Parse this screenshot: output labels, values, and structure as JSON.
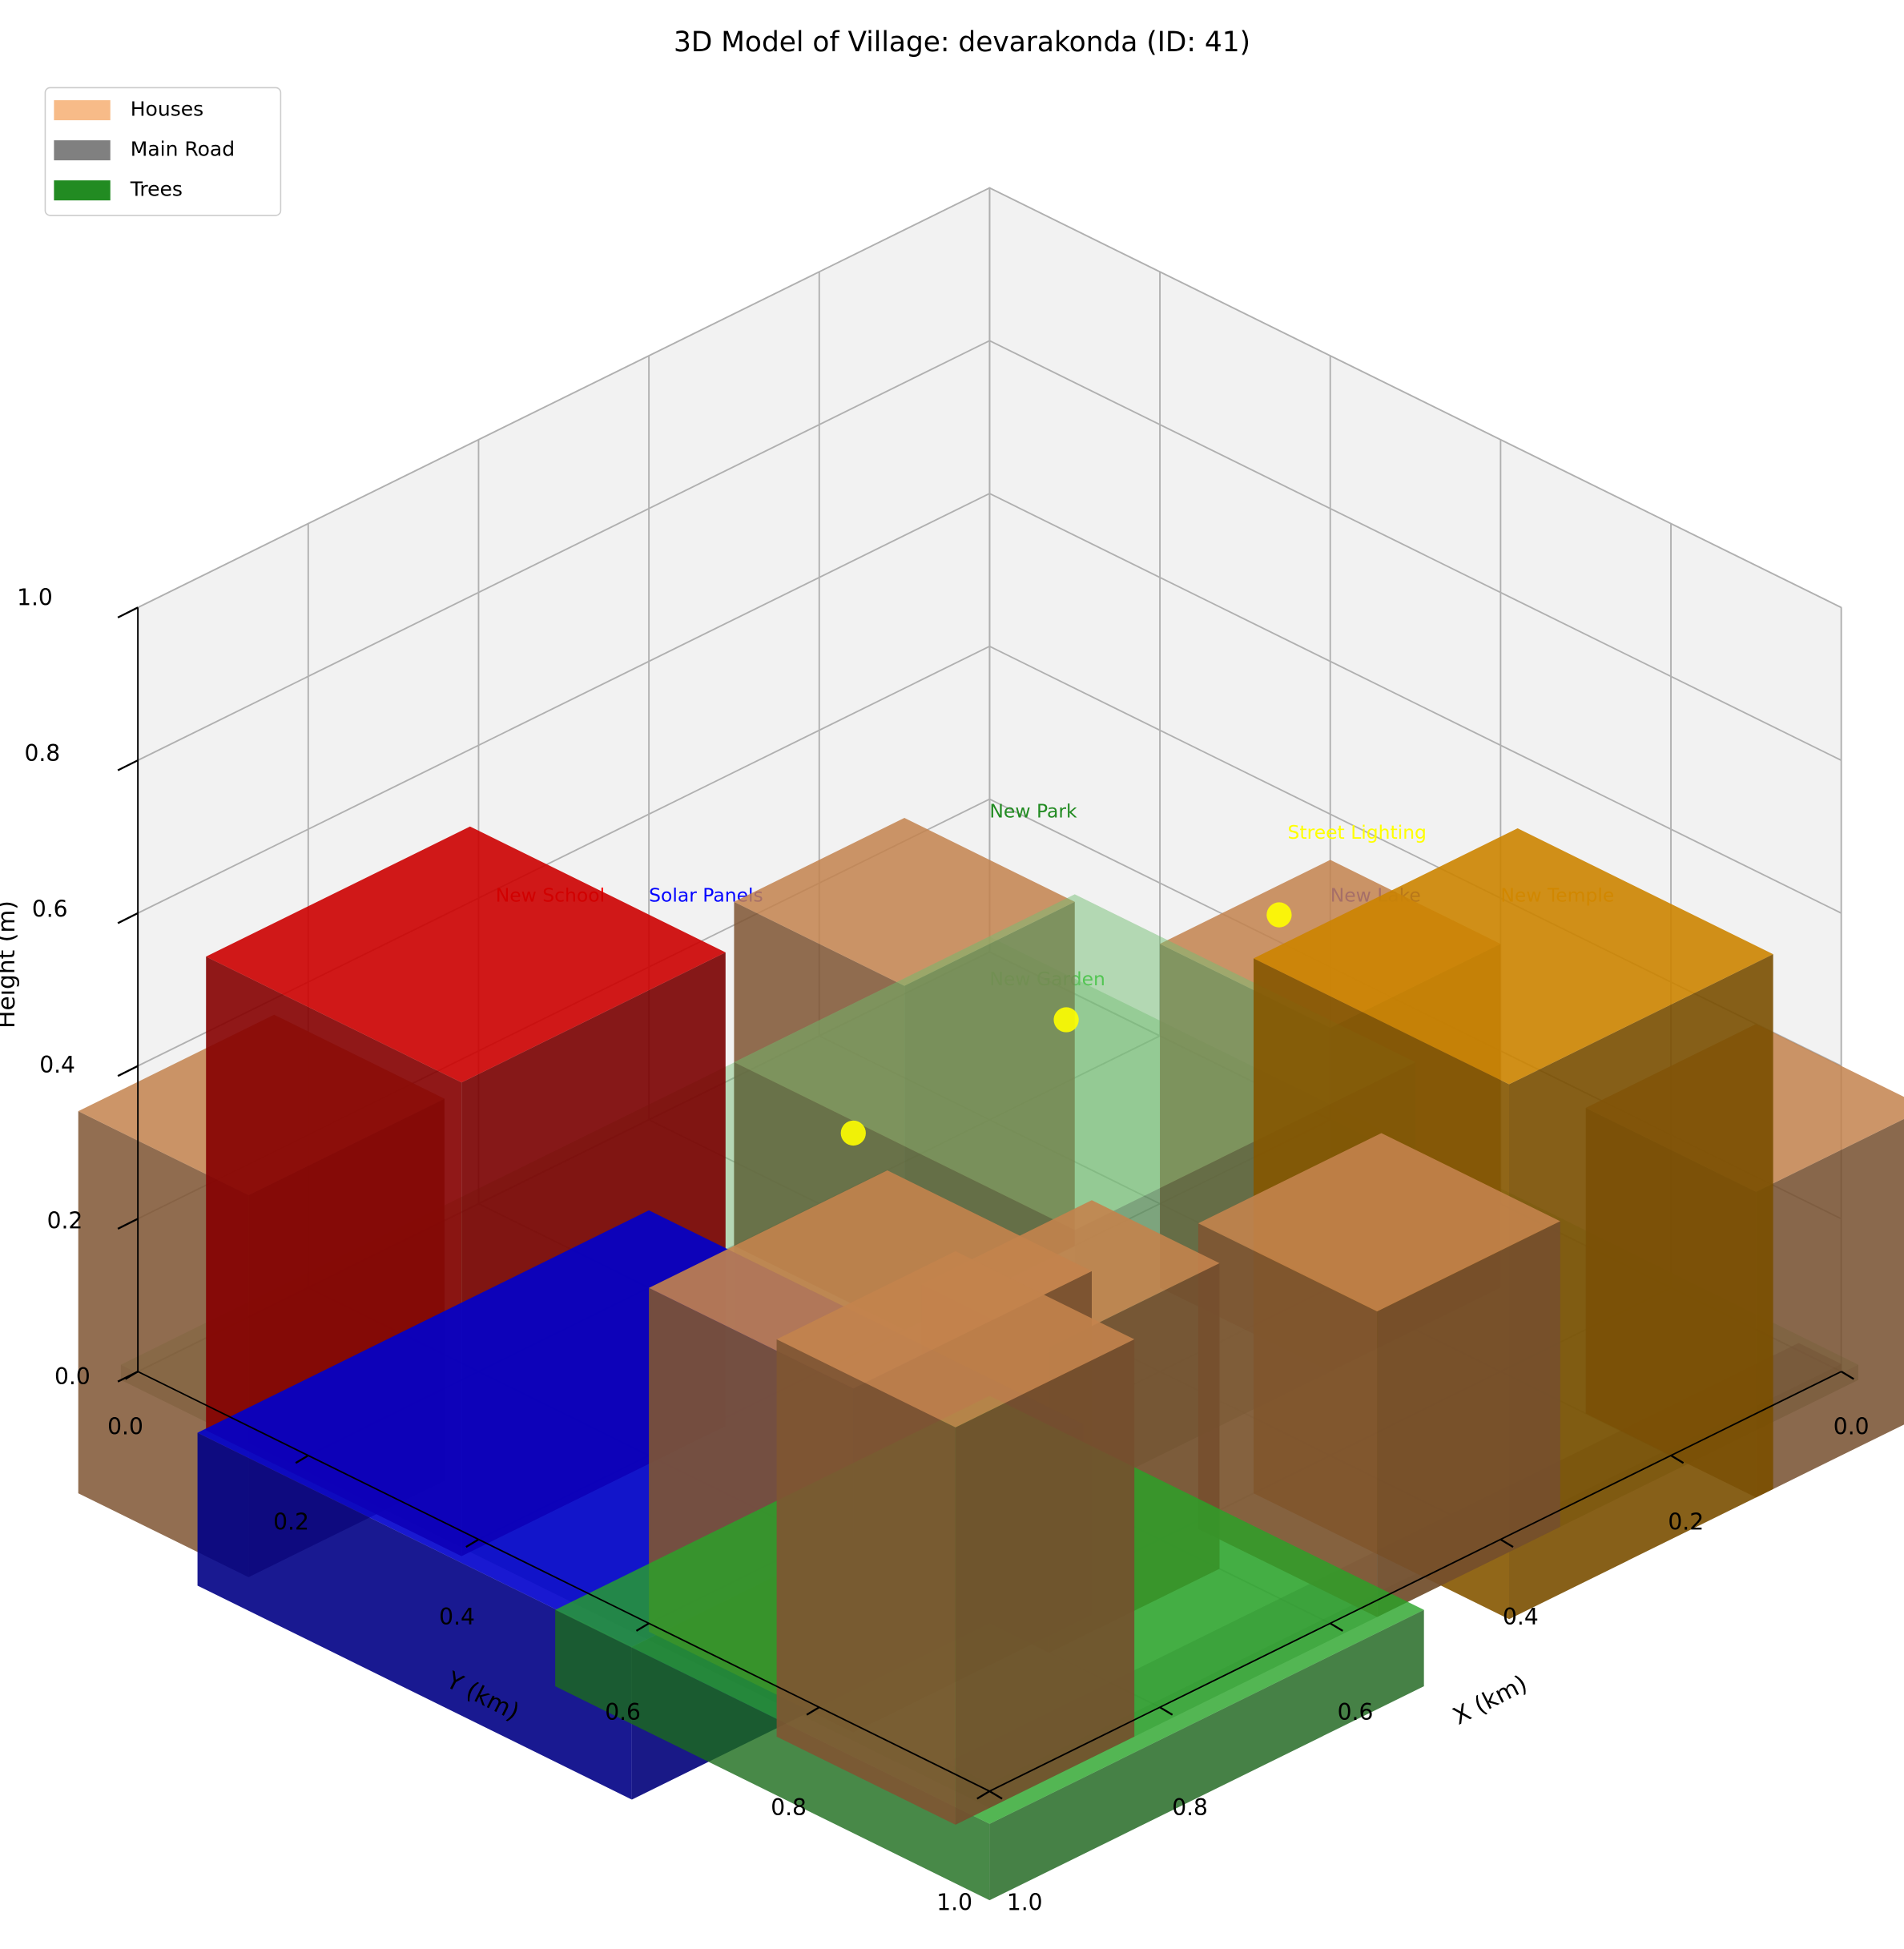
{
  "chart_data": {
    "type": "bar3d",
    "title": "3D Model of Village: devarakonda (ID: 41)",
    "xlabel": "X (km)",
    "ylabel": "Y (km)",
    "zlabel": "Height (m)",
    "xlim": [
      0,
      1
    ],
    "ylim": [
      0,
      1
    ],
    "zlim": [
      0,
      1
    ],
    "xticks": [
      {
        "value": 0,
        "label": "0.0"
      },
      0.2,
      0.4,
      0.6,
      0.8,
      {
        "value": 1,
        "label": "1.0"
      }
    ],
    "yticks": [
      {
        "value": 0,
        "label": "0.0"
      },
      0.2,
      0.4,
      0.6,
      0.8,
      {
        "value": 1,
        "label": "1.0"
      }
    ],
    "zticks": [
      {
        "value": 0,
        "label": "0.0"
      },
      0.2,
      0.4,
      0.6,
      0.8,
      {
        "value": 1,
        "label": "1.0"
      }
    ],
    "grid": true,
    "legend": "upper left",
    "series": [
      {
        "name": "Houses",
        "color": "#f4a460",
        "alpha": 0.75
      },
      {
        "name": "Main Road",
        "color": "#808080",
        "alpha": 1
      },
      {
        "name": "Trees",
        "color": "#228b22",
        "alpha": 1
      }
    ],
    "boxes": [
      {
        "x": 0,
        "y": 0,
        "dx": 1.02,
        "dy": 1.02,
        "dz": 0.02,
        "color": "#90ee90",
        "alpha": 0.45
      },
      {
        "x": 0,
        "y": 0.95,
        "dx": 1,
        "dy": 0.05,
        "dz": 0.01,
        "color": "#808080",
        "alpha": 0.5
      },
      {
        "x": 0.3,
        "y": 0.2,
        "dx": 0.2,
        "dy": 0.2,
        "dz": 0.45,
        "color": "#f4a460",
        "alpha": 0.85
      },
      {
        "x": 0.1,
        "y": 0.5,
        "dx": 0.2,
        "dy": 0.2,
        "dz": 0.45,
        "color": "#f4a460",
        "alpha": 0.85
      },
      {
        "x": 0.2,
        "y": 0.3,
        "dx": 0.4,
        "dy": 0.4,
        "dz": 0.35,
        "color": "#90ee90",
        "alpha": 0.5
      },
      {
        "x": 0.95,
        "y": 0.11,
        "dx": 0.23,
        "dy": 0.2,
        "dz": 0.5,
        "color": "#f4a460",
        "alpha": 0.85
      },
      {
        "x": 0.72,
        "y": 0.11,
        "dx": 0.31,
        "dy": 0.3,
        "dz": 0.62,
        "color": "#ff0000",
        "alpha": 0.9
      },
      {
        "x": 0,
        "y": 0.9,
        "dx": 0.2,
        "dy": 0.2,
        "dz": 0.4,
        "color": "#f4a460",
        "alpha": 0.85
      },
      {
        "x": 0.18,
        "y": 0.8,
        "dx": 0.31,
        "dy": 0.3,
        "dz": 0.7,
        "color": "#ffa500",
        "alpha": 0.9
      },
      {
        "x": 0.35,
        "y": 0.81,
        "dx": 0.215,
        "dy": 0.21,
        "dz": 0.4,
        "color": "#f4a460",
        "alpha": 0.9
      },
      {
        "x": 0.6,
        "y": 0.72,
        "dx": 0.2,
        "dy": 0.15,
        "dz": 0.4,
        "color": "#f4a460",
        "alpha": 0.9
      },
      {
        "x": 0.69,
        "y": 0.29,
        "dx": 0.53,
        "dy": 0.51,
        "dz": 0.2,
        "color": "#0000ff",
        "alpha": 0.9
      },
      {
        "x": 0.73,
        "y": 0.61,
        "dx": 0.28,
        "dy": 0.24,
        "dz": 0.45,
        "color": "#f4a460",
        "alpha": 0.9
      },
      {
        "x": 0.62,
        "y": 0.62,
        "dx": 0.51,
        "dy": 0.51,
        "dz": 0.1,
        "color": "#32cd32",
        "alpha": 0.8
      },
      {
        "x": 0.85,
        "y": 0.81,
        "dx": 0.21,
        "dy": 0.21,
        "dz": 0.52,
        "color": "#f4a460",
        "alpha": 0.9
      }
    ],
    "points": {
      "color": "#ffff00",
      "x": [
        0.66,
        0.4,
        0.15
      ],
      "y": [
        0.5,
        0.49,
        0.49
      ],
      "z": [
        0.4,
        0.4,
        0.4
      ]
    },
    "annotations": [
      {
        "text": "New School",
        "color": "#ff0000",
        "x": 0.77,
        "y": 0.19,
        "z": 0.6
      },
      {
        "text": "Solar Panels",
        "color": "#0000ff",
        "x": 0.68,
        "y": 0.28,
        "z": 0.6
      },
      {
        "text": "New Park",
        "color": "#228b22",
        "x": 0.38,
        "y": 0.38,
        "z": 0.6
      },
      {
        "text": "Street Lighting",
        "color": "#ffff00",
        "x": 0.23,
        "y": 0.58,
        "z": 0.6
      },
      {
        "text": "New Lake",
        "color": "#0000ff",
        "x": 0.28,
        "y": 0.68,
        "z": 0.6
      },
      {
        "text": "New Temple",
        "color": "#ffa500",
        "x": 0.18,
        "y": 0.78,
        "z": 0.6
      },
      {
        "text": "New Garden",
        "color": "#32cd32",
        "x": 0.58,
        "y": 0.58,
        "z": 0.6
      }
    ]
  }
}
